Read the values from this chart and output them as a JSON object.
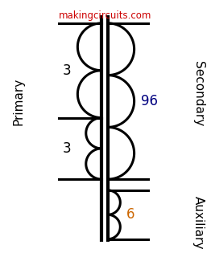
{
  "title_text": "makingcircuits.com",
  "title_color": "#cc0000",
  "title_fontsize": 8.5,
  "bg_color": "#ffffff",
  "line_color": "#000000",
  "line_width": 2.2,
  "core_lw": 3.0,
  "primary_label": "Primary",
  "secondary_label": "Secondary",
  "auxiliary_label": "Auxiliary",
  "label_color": "#000000",
  "secondary_num_color": "#000080",
  "auxiliary_num_color": "#cc6600",
  "turn_labels": {
    "primary_top": "3",
    "primary_bottom": "3",
    "secondary": "96",
    "auxiliary": "6"
  },
  "figsize": [
    2.62,
    3.2
  ],
  "dpi": 100
}
